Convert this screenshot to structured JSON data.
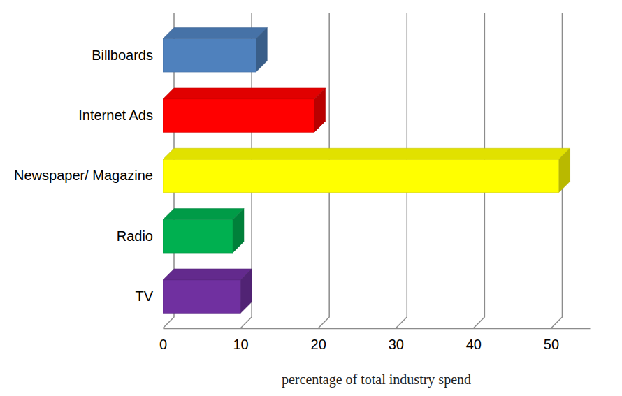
{
  "chart_data": {
    "type": "bar",
    "orientation": "horizontal",
    "categories": [
      "Billboards",
      "Internet Ads",
      "Newspaper/ Magazine",
      "Radio",
      "TV"
    ],
    "values": [
      12,
      19.5,
      51,
      9,
      10
    ],
    "colors": [
      "#4f81bd",
      "#ff0000",
      "#ffff00",
      "#00b050",
      "#7030a0"
    ],
    "xlim": [
      0,
      55
    ],
    "xticks": [
      0,
      10,
      20,
      30,
      40,
      50
    ],
    "xlabel": "percentage of total industry spend",
    "grid": true
  }
}
